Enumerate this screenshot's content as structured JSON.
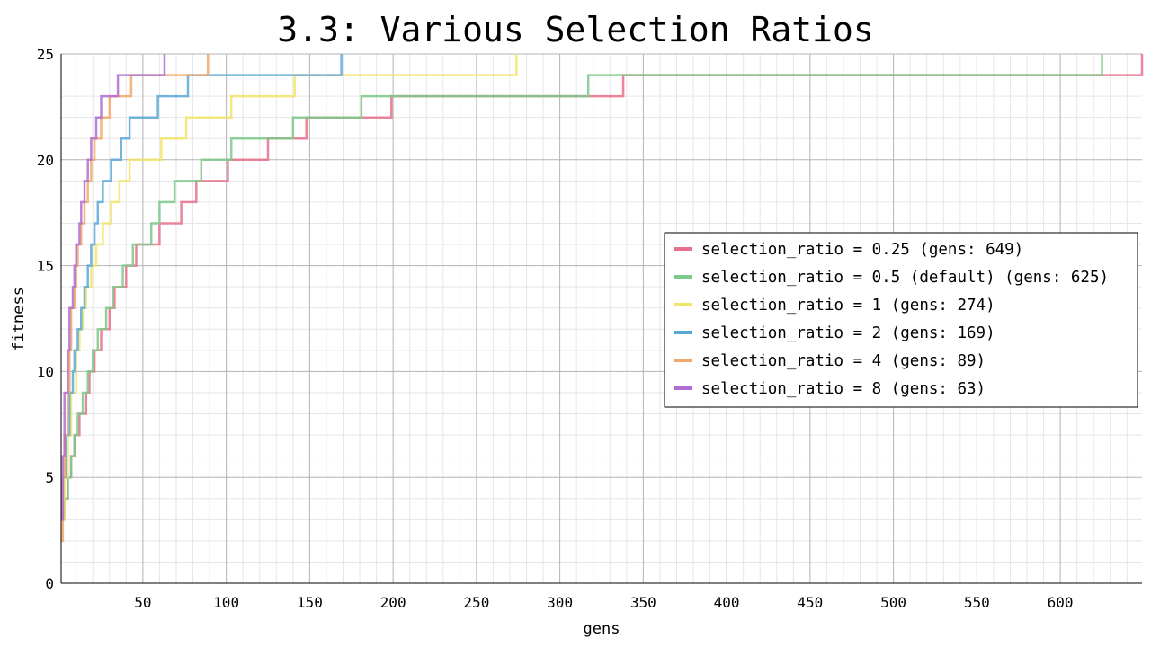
{
  "chart_data": {
    "type": "line",
    "title": "3.3: Various Selection Ratios",
    "xlabel": "gens",
    "ylabel": "fitness",
    "xlim": [
      1,
      649
    ],
    "ylim": [
      0,
      25
    ],
    "x_ticks": [
      50,
      100,
      150,
      200,
      250,
      300,
      350,
      400,
      450,
      500,
      550,
      600
    ],
    "y_ticks": [
      0,
      5,
      10,
      15,
      20,
      25
    ],
    "grid": true,
    "legend_position": "right",
    "series": [
      {
        "name": "selection_ratio = 0.25 (gens: 649)",
        "color": "#e8708a",
        "steps": [
          [
            1,
            3
          ],
          [
            3,
            4
          ],
          [
            5,
            5
          ],
          [
            7,
            6
          ],
          [
            9,
            7
          ],
          [
            12,
            8
          ],
          [
            16,
            9
          ],
          [
            18,
            10
          ],
          [
            21,
            11
          ],
          [
            25,
            12
          ],
          [
            30,
            13
          ],
          [
            33,
            14
          ],
          [
            40,
            15
          ],
          [
            46,
            16
          ],
          [
            60,
            17
          ],
          [
            73,
            18
          ],
          [
            82,
            19
          ],
          [
            101,
            20
          ],
          [
            125,
            21
          ],
          [
            148,
            22
          ],
          [
            199,
            23
          ],
          [
            338,
            24
          ],
          [
            649,
            25
          ]
        ]
      },
      {
        "name": "selection_ratio = 0.5 (default) (gens: 625)",
        "color": "#7dc98a",
        "steps": [
          [
            1,
            3
          ],
          [
            3,
            4
          ],
          [
            5,
            5
          ],
          [
            7,
            6
          ],
          [
            9,
            7
          ],
          [
            11,
            8
          ],
          [
            14,
            9
          ],
          [
            17,
            10
          ],
          [
            20,
            11
          ],
          [
            23,
            12
          ],
          [
            28,
            13
          ],
          [
            32,
            14
          ],
          [
            38,
            15
          ],
          [
            44,
            16
          ],
          [
            55,
            17
          ],
          [
            60,
            18
          ],
          [
            69,
            19
          ],
          [
            85,
            20
          ],
          [
            103,
            21
          ],
          [
            140,
            22
          ],
          [
            181,
            23
          ],
          [
            317,
            24
          ],
          [
            625,
            25
          ]
        ]
      },
      {
        "name": "selection_ratio = 1 (gens: 274)",
        "color": "#f2e46a",
        "steps": [
          [
            1,
            3
          ],
          [
            3,
            5
          ],
          [
            5,
            7
          ],
          [
            7,
            9
          ],
          [
            10,
            11
          ],
          [
            12,
            12
          ],
          [
            14,
            13
          ],
          [
            16,
            14
          ],
          [
            19,
            15
          ],
          [
            22,
            16
          ],
          [
            26,
            17
          ],
          [
            31,
            18
          ],
          [
            36,
            19
          ],
          [
            42,
            20
          ],
          [
            61,
            21
          ],
          [
            76,
            22
          ],
          [
            103,
            23
          ],
          [
            141,
            24
          ],
          [
            274,
            25
          ]
        ]
      },
      {
        "name": "selection_ratio = 2 (gens: 169)",
        "color": "#5aa8d8",
        "steps": [
          [
            1,
            3
          ],
          [
            2,
            5
          ],
          [
            4,
            7
          ],
          [
            6,
            9
          ],
          [
            8,
            10
          ],
          [
            9,
            11
          ],
          [
            11,
            12
          ],
          [
            13,
            13
          ],
          [
            15,
            14
          ],
          [
            17,
            15
          ],
          [
            19,
            16
          ],
          [
            21,
            17
          ],
          [
            23,
            18
          ],
          [
            26,
            19
          ],
          [
            31,
            20
          ],
          [
            37,
            21
          ],
          [
            42,
            22
          ],
          [
            59,
            23
          ],
          [
            77,
            24
          ],
          [
            169,
            25
          ]
        ]
      },
      {
        "name": "selection_ratio = 4 (gens: 89)",
        "color": "#f2a869",
        "steps": [
          [
            1,
            2
          ],
          [
            2,
            5
          ],
          [
            3,
            7
          ],
          [
            5,
            9
          ],
          [
            6,
            11
          ],
          [
            7,
            13
          ],
          [
            9,
            14
          ],
          [
            10,
            15
          ],
          [
            11,
            16
          ],
          [
            13,
            17
          ],
          [
            15,
            18
          ],
          [
            17,
            19
          ],
          [
            19,
            20
          ],
          [
            21,
            21
          ],
          [
            25,
            22
          ],
          [
            30,
            23
          ],
          [
            43,
            24
          ],
          [
            89,
            25
          ]
        ]
      },
      {
        "name": "selection_ratio = 8 (gens: 63)",
        "color": "#b06fd0",
        "steps": [
          [
            1,
            3
          ],
          [
            2,
            6
          ],
          [
            3,
            9
          ],
          [
            5,
            11
          ],
          [
            6,
            13
          ],
          [
            8,
            14
          ],
          [
            9,
            15
          ],
          [
            10,
            16
          ],
          [
            12,
            17
          ],
          [
            13,
            18
          ],
          [
            15,
            19
          ],
          [
            17,
            20
          ],
          [
            19,
            21
          ],
          [
            22,
            22
          ],
          [
            25,
            23
          ],
          [
            35,
            24
          ],
          [
            63,
            25
          ]
        ]
      }
    ]
  }
}
